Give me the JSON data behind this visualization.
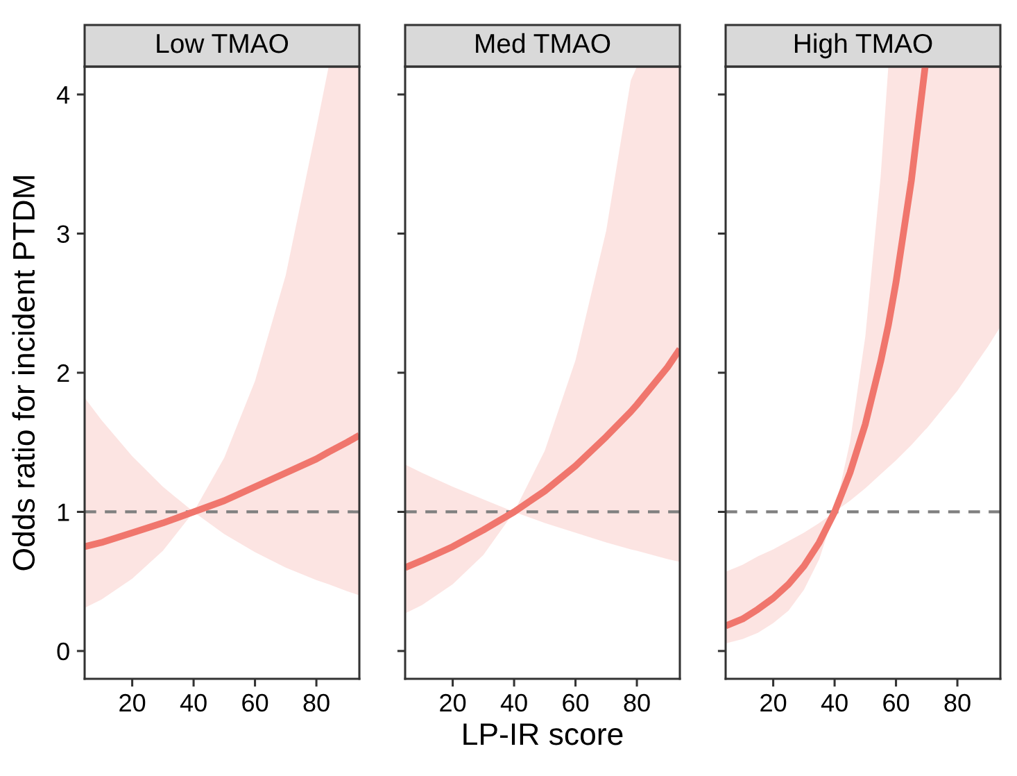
{
  "chart_data": [
    {
      "type": "line",
      "title": "Low TMAO",
      "ylabel": "Odds ratio for incident PTDM",
      "xlim": [
        4.5,
        94
      ],
      "xticks": [
        20,
        40,
        60,
        80
      ],
      "ylim": [
        -0.2,
        4.2
      ],
      "yticks": [
        0,
        1,
        2,
        3,
        4
      ],
      "series": [
        {
          "color": "#f0766d",
          "x": [
            4.5,
            10,
            20,
            30,
            40,
            50,
            60,
            70,
            80,
            84,
            90,
            94
          ],
          "values": [
            0.75,
            0.78,
            0.85,
            0.92,
            1.0,
            1.08,
            1.18,
            1.28,
            1.38,
            1.43,
            1.5,
            1.55
          ],
          "lower": [
            0.31,
            0.37,
            0.52,
            0.72,
            1.0,
            0.84,
            0.71,
            0.6,
            0.51,
            0.48,
            0.43,
            0.4
          ],
          "upper": [
            1.82,
            1.66,
            1.4,
            1.18,
            1.0,
            1.39,
            1.94,
            2.7,
            3.76,
            4.2,
            4.2,
            4.2
          ]
        }
      ],
      "ref_lines": [
        {
          "axis": "y",
          "value": 1,
          "color": "#808080",
          "line_style": "dashed"
        }
      ]
    },
    {
      "type": "line",
      "title": "Med TMAO",
      "xlabel": "LP-IR score",
      "xlim": [
        4.5,
        94
      ],
      "xticks": [
        20,
        40,
        60,
        80
      ],
      "ylim": [
        -0.2,
        4.2
      ],
      "yticks": [
        0,
        1,
        2,
        3,
        4
      ],
      "tick_labels": "x",
      "series": [
        {
          "color": "#f0766d",
          "x": [
            4.5,
            10,
            20,
            30,
            40,
            50,
            60,
            70,
            78,
            80,
            90,
            94
          ],
          "values": [
            0.6,
            0.65,
            0.75,
            0.87,
            1.0,
            1.15,
            1.33,
            1.54,
            1.72,
            1.77,
            2.04,
            2.17
          ],
          "lower": [
            0.27,
            0.33,
            0.48,
            0.69,
            1.0,
            0.92,
            0.85,
            0.78,
            0.73,
            0.72,
            0.66,
            0.64
          ],
          "upper": [
            1.34,
            1.28,
            1.18,
            1.09,
            1.0,
            1.44,
            2.09,
            3.02,
            4.1,
            4.2,
            4.2,
            4.2
          ]
        }
      ],
      "ref_lines": [
        {
          "axis": "y",
          "value": 1,
          "color": "#808080",
          "line_style": "dashed"
        }
      ]
    },
    {
      "type": "line",
      "title": "High TMAO",
      "xlim": [
        4.5,
        94
      ],
      "xticks": [
        20,
        40,
        60,
        80
      ],
      "ylim": [
        -0.2,
        4.2
      ],
      "yticks": [
        0,
        1,
        2,
        3,
        4
      ],
      "tick_labels": "x",
      "series": [
        {
          "color": "#f0766d",
          "x": [
            4.5,
            10,
            15,
            20,
            25,
            30,
            35,
            40,
            45,
            50,
            55,
            57.5,
            60,
            65,
            69.5,
            70,
            80,
            90,
            94
          ],
          "values": [
            0.18,
            0.23,
            0.3,
            0.38,
            0.48,
            0.61,
            0.78,
            1.0,
            1.28,
            1.63,
            2.08,
            2.34,
            2.65,
            3.38,
            4.2,
            null,
            null,
            null,
            null
          ],
          "lower": [
            0.055,
            0.086,
            0.13,
            0.2,
            0.29,
            0.44,
            0.66,
            1.0,
            1.08,
            1.17,
            1.27,
            1.32,
            1.37,
            1.48,
            1.59,
            1.6,
            1.87,
            2.19,
            2.33
          ],
          "upper": [
            0.57,
            0.62,
            0.68,
            0.73,
            0.79,
            0.85,
            0.92,
            1.0,
            1.5,
            2.26,
            3.41,
            4.2,
            4.2,
            4.2,
            4.2,
            4.2,
            4.2,
            4.2,
            4.2
          ]
        }
      ],
      "ref_lines": [
        {
          "axis": "y",
          "value": 1,
          "color": "#808080",
          "line_style": "dashed"
        }
      ]
    }
  ]
}
